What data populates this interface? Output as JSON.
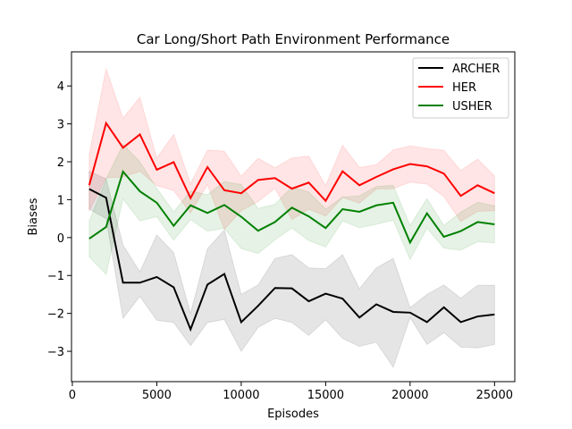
{
  "chart_data": {
    "type": "line",
    "title": "Car Long/Short Path Environment Performance",
    "xlabel": "Episodes",
    "ylabel": "Biases",
    "xlim": [
      -50,
      26200
    ],
    "ylim": [
      -3.8,
      4.9
    ],
    "xticks": [
      0,
      5000,
      10000,
      15000,
      20000,
      25000
    ],
    "xtick_labels": [
      "0",
      "5000",
      "10000",
      "15000",
      "20000",
      "25000"
    ],
    "yticks": [
      -3,
      -2,
      -1,
      0,
      1,
      2,
      3,
      4
    ],
    "ytick_labels": [
      "−3",
      "−2",
      "−1",
      "0",
      "1",
      "2",
      "3",
      "4"
    ],
    "grid": false,
    "legend_position": "top-right",
    "x": [
      1000,
      2000,
      3000,
      4000,
      5000,
      6000,
      7000,
      8000,
      9000,
      10000,
      11000,
      12000,
      13000,
      14000,
      15000,
      16000,
      17000,
      18000,
      19000,
      20000,
      21000,
      22000,
      23000,
      24000,
      25000
    ],
    "series": [
      {
        "name": "ARCHER",
        "color": "#000000",
        "values": [
          1.28,
          1.05,
          -1.19,
          -1.19,
          -1.04,
          -1.31,
          -2.42,
          -1.24,
          -0.96,
          -2.23,
          -1.8,
          -1.33,
          -1.34,
          -1.68,
          -1.48,
          -1.61,
          -2.11,
          -1.76,
          -1.96,
          -1.98,
          -2.23,
          -1.84,
          -2.23,
          -2.08,
          -2.03
        ],
        "upper": [
          1.75,
          1.55,
          -0.2,
          -0.9,
          0.07,
          -0.4,
          -2.0,
          -0.3,
          0.2,
          -1.5,
          -1.25,
          -0.55,
          -0.45,
          -0.8,
          -0.82,
          -0.45,
          -1.35,
          -0.8,
          -0.55,
          -1.85,
          -1.5,
          -1.25,
          -1.6,
          -1.26,
          -1.26
        ],
        "lower": [
          0.75,
          0.5,
          -2.13,
          -1.55,
          -2.18,
          -2.24,
          -2.85,
          -2.24,
          -2.16,
          -3.0,
          -2.37,
          -2.13,
          -2.24,
          -2.58,
          -2.17,
          -2.66,
          -2.87,
          -2.76,
          -3.42,
          -2.11,
          -2.82,
          -2.51,
          -2.89,
          -2.91,
          -2.82
        ]
      },
      {
        "name": "HER",
        "color": "#ff0000",
        "values": [
          1.38,
          3.02,
          2.37,
          2.72,
          1.79,
          1.99,
          1.04,
          1.86,
          1.25,
          1.17,
          1.52,
          1.57,
          1.29,
          1.45,
          0.97,
          1.75,
          1.38,
          1.6,
          1.8,
          1.94,
          1.88,
          1.69,
          1.1,
          1.38,
          1.17
        ],
        "upper": [
          2.2,
          4.45,
          3.15,
          3.7,
          2.1,
          2.72,
          1.42,
          2.31,
          2.28,
          1.62,
          2.09,
          1.84,
          2.1,
          2.15,
          1.37,
          2.44,
          1.85,
          1.92,
          2.31,
          2.42,
          2.35,
          2.3,
          1.77,
          2.07,
          1.63
        ],
        "lower": [
          0.7,
          1.58,
          1.6,
          1.75,
          1.37,
          1.24,
          0.65,
          1.4,
          0.22,
          0.71,
          0.95,
          1.3,
          0.48,
          0.75,
          0.57,
          1.06,
          0.91,
          1.28,
          1.29,
          1.46,
          1.41,
          1.08,
          0.43,
          0.69,
          0.71
        ]
      },
      {
        "name": "USHER",
        "color": "#008000",
        "values": [
          -0.03,
          0.28,
          1.74,
          1.22,
          0.92,
          0.31,
          0.85,
          0.65,
          0.86,
          0.55,
          0.18,
          0.41,
          0.79,
          0.56,
          0.25,
          0.75,
          0.68,
          0.85,
          0.92,
          -0.13,
          0.64,
          0.02,
          0.17,
          0.41,
          0.35
        ],
        "upper": [
          0.44,
          1.54,
          2.46,
          2.0,
          1.3,
          0.68,
          1.23,
          1.13,
          1.48,
          1.4,
          0.77,
          0.88,
          1.33,
          1.2,
          0.75,
          1.07,
          1.1,
          1.35,
          1.38,
          0.32,
          1.03,
          0.32,
          0.67,
          0.93,
          0.84
        ],
        "lower": [
          -0.51,
          -0.97,
          1.02,
          0.44,
          0.55,
          -0.07,
          0.47,
          0.17,
          0.24,
          -0.29,
          -0.42,
          -0.06,
          0.25,
          -0.08,
          -0.25,
          0.44,
          0.26,
          0.35,
          0.46,
          -0.58,
          0.25,
          -0.28,
          -0.33,
          -0.11,
          -0.14
        ]
      }
    ]
  }
}
